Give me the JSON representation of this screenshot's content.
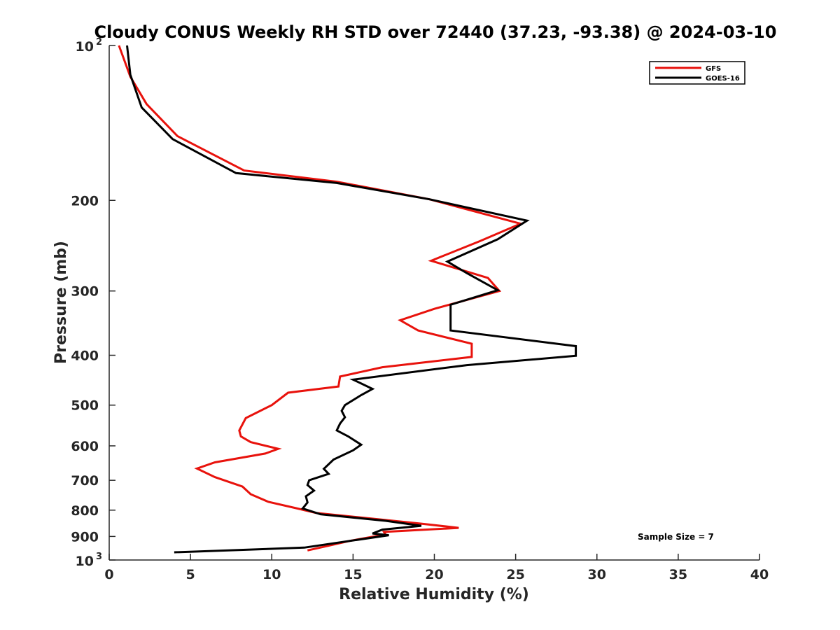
{
  "chart_data": {
    "type": "line",
    "title": "Cloudy CONUS Weekly RH STD over 72440 (37.23, -93.38) @ 2024-03-10",
    "xlabel": "Relative Humidity (%)",
    "ylabel": "Pressure (mb)",
    "xlim": [
      0,
      40
    ],
    "ylim": [
      100,
      1000
    ],
    "y_scale": "log",
    "y_reversed": true,
    "grid": false,
    "legend_position": "top-right",
    "x_ticks": [
      0,
      5,
      10,
      15,
      20,
      25,
      30,
      35,
      40
    ],
    "x_tick_labels": [
      "0",
      "5",
      "10",
      "15",
      "20",
      "25",
      "30",
      "35",
      "40"
    ],
    "y_ticks": [
      {
        "value": 100,
        "base": "10",
        "exp": "2"
      },
      {
        "value": 200,
        "label": "200"
      },
      {
        "value": 300,
        "label": "300"
      },
      {
        "value": 400,
        "label": "400"
      },
      {
        "value": 500,
        "label": "500"
      },
      {
        "value": 600,
        "label": "600"
      },
      {
        "value": 700,
        "label": "700"
      },
      {
        "value": 800,
        "label": "800"
      },
      {
        "value": 900,
        "label": "900"
      },
      {
        "value": 1000,
        "base": "10",
        "exp": "3"
      }
    ],
    "annotation": "Sample Size = 7",
    "series": [
      {
        "name": "GFS",
        "color": "#e8120c",
        "points": [
          [
            0.6,
            100
          ],
          [
            1.3,
            115
          ],
          [
            2.3,
            130
          ],
          [
            4.2,
            150
          ],
          [
            8.3,
            175
          ],
          [
            14,
            184
          ],
          [
            19.7,
            199
          ],
          [
            25.3,
            222
          ],
          [
            22.8,
            240
          ],
          [
            19.8,
            262
          ],
          [
            23.3,
            283
          ],
          [
            24,
            300
          ],
          [
            20,
            325
          ],
          [
            17.9,
            342
          ],
          [
            19,
            358
          ],
          [
            22.3,
            380
          ],
          [
            22.3,
            403
          ],
          [
            16.8,
            422
          ],
          [
            14.2,
            440
          ],
          [
            14.1,
            460
          ],
          [
            11,
            473
          ],
          [
            10,
            500
          ],
          [
            8.4,
            530
          ],
          [
            8.0,
            560
          ],
          [
            8.1,
            575
          ],
          [
            8.7,
            590
          ],
          [
            10.4,
            608
          ],
          [
            9.6,
            621
          ],
          [
            6.5,
            646
          ],
          [
            5.4,
            664
          ],
          [
            6.5,
            690
          ],
          [
            8.2,
            720
          ],
          [
            8.7,
            745
          ],
          [
            9.8,
            771
          ],
          [
            11.5,
            793
          ],
          [
            12.7,
            810
          ],
          [
            16,
            830
          ],
          [
            19.2,
            850
          ],
          [
            21.5,
            866
          ],
          [
            16.9,
            882
          ],
          [
            17,
            892
          ],
          [
            14.8,
            918
          ],
          [
            13.5,
            938
          ],
          [
            12.2,
            958
          ]
        ]
      },
      {
        "name": "GOES-16",
        "color": "#000000",
        "points": [
          [
            1.1,
            100
          ],
          [
            1.3,
            114
          ],
          [
            2,
            132
          ],
          [
            3.9,
            152
          ],
          [
            7.8,
            177
          ],
          [
            14,
            185
          ],
          [
            19.7,
            199
          ],
          [
            25.7,
            219
          ],
          [
            23.9,
            238
          ],
          [
            20.8,
            263
          ],
          [
            22,
            277
          ],
          [
            23.9,
            299
          ],
          [
            21,
            319
          ],
          [
            21,
            358
          ],
          [
            28.7,
            384
          ],
          [
            28.7,
            401
          ],
          [
            22,
            418
          ],
          [
            15,
            446
          ],
          [
            16.2,
            465
          ],
          [
            15.5,
            478
          ],
          [
            14.5,
            500
          ],
          [
            14.3,
            513
          ],
          [
            14.5,
            528
          ],
          [
            14.2,
            543
          ],
          [
            14,
            560
          ],
          [
            14.7,
            575
          ],
          [
            15.5,
            597
          ],
          [
            15,
            612
          ],
          [
            13.8,
            638
          ],
          [
            13.2,
            665
          ],
          [
            13.5,
            680
          ],
          [
            12.3,
            700
          ],
          [
            12.2,
            715
          ],
          [
            12.6,
            733
          ],
          [
            12.1,
            752
          ],
          [
            12.2,
            773
          ],
          [
            11.9,
            794
          ],
          [
            13,
            815
          ],
          [
            17,
            839
          ],
          [
            19.2,
            858
          ],
          [
            16.8,
            873
          ],
          [
            16.2,
            888
          ],
          [
            17.2,
            895
          ],
          [
            12,
            946
          ],
          [
            4,
            966
          ]
        ]
      }
    ]
  }
}
